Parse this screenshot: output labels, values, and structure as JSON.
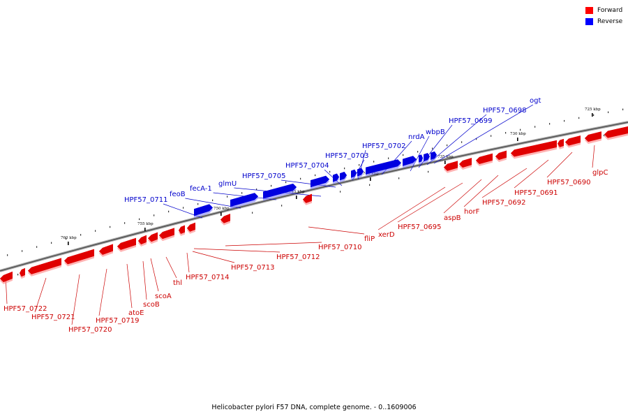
{
  "legend": {
    "forward": {
      "label": "Forward",
      "color": "#ff0000"
    },
    "reverse": {
      "label": "Reverse",
      "color": "#0000ff"
    }
  },
  "caption": "Helicobacter pylori F57 DNA, complete genome. - 0..1609006",
  "scale_ticks": [
    "760 kbp",
    "755 kbp",
    "750 kbp",
    "745 kbp",
    "740 kbp",
    "735 kbp",
    "730 kbp",
    "725 kbp"
  ],
  "forward_labels": [
    "HPF57_0722",
    "HPF57_0721",
    "HPF57_0720",
    "HPF57_0719",
    "atoE",
    "scoB",
    "scoA",
    "thl",
    "HPF57_0714",
    "HPF57_0713",
    "HPF57_0712",
    "HPF57_0710",
    "fliP",
    "xerD",
    "HPF57_0695",
    "aspB",
    "horF",
    "HPF57_0692",
    "HPF57_0691",
    "HPF57_0690",
    "glpC"
  ],
  "reverse_labels": [
    "HPF57_0711",
    "feoB",
    "fecA-1",
    "glmU",
    "HPF57_0705",
    "HPF57_0704",
    "HPF57_0703",
    "HPF57_0702",
    "nrdA",
    "wbpB",
    "HPF57_0699",
    "HPF57_0698",
    "ogt"
  ]
}
